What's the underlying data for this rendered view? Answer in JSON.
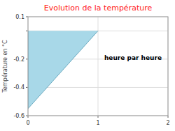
{
  "chart_data": {
    "type": "fill",
    "title": "Evolution de la température",
    "y_label": "Température en °C",
    "x": [
      0,
      0,
      1,
      0
    ],
    "values": [
      0,
      -0.55,
      0,
      0
    ],
    "color": "#a8d8e8",
    "xlim": [
      0,
      2
    ],
    "xticks": [
      0,
      1,
      2
    ],
    "ylim": [
      -0.6,
      0.1
    ],
    "yticks": [
      -0.6,
      -0.4,
      -0.2,
      {
        "value": 0.0,
        "label": null
      },
      0.1
    ],
    "grid": true,
    "annotations": [
      {
        "text": "heure par heure",
        "x": 1.5,
        "y": -0.19
      }
    ]
  }
}
